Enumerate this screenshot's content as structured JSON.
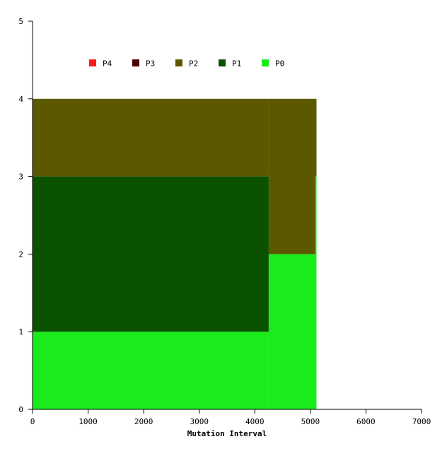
{
  "chart_data": {
    "type": "area",
    "title": "",
    "xlabel": "Mutation Interval",
    "ylabel": "",
    "xlim": [
      0,
      7000
    ],
    "ylim": [
      0,
      5
    ],
    "x_ticks": [
      0,
      1000,
      2000,
      3000,
      4000,
      5000,
      6000,
      7000
    ],
    "y_ticks": [
      0,
      1,
      2,
      3,
      4,
      5
    ],
    "legend_position": "top-left",
    "grid": false,
    "series": [
      {
        "name": "P4",
        "color": "#ff1a1a",
        "x_start": 0,
        "x_end": 5100,
        "base": 4,
        "top": 4
      },
      {
        "name": "P3",
        "color": "#4d0000",
        "x_start": 0,
        "x_end": 5100,
        "base": 4,
        "top": 4
      },
      {
        "name": "P2",
        "color": "#5c5800",
        "x_start": 0,
        "x_end": 5100,
        "base": 3,
        "top": 4
      },
      {
        "name": "P1",
        "color": "#0a5200",
        "x_start": 0,
        "x_end": 5100,
        "base": 1,
        "top": 3
      },
      {
        "name": "P0",
        "color": "#1aeb1a",
        "x_start": 0,
        "x_end": 5100,
        "base": 0,
        "top": 1
      }
    ],
    "segments": [
      {
        "x_start": 0,
        "x_end": 4250,
        "P0": 1,
        "P1": 2,
        "P2": 1,
        "P3": 0,
        "P4": 0
      },
      {
        "x_start": 4250,
        "x_end": 5090,
        "P0": 2,
        "P1": 0,
        "P2": 2,
        "P3": 0,
        "P4": 0
      },
      {
        "x_start": 5090,
        "x_end": 5110,
        "P0": 3,
        "P1": 0,
        "P2": 1,
        "P3": 0,
        "P4": 0
      }
    ]
  }
}
